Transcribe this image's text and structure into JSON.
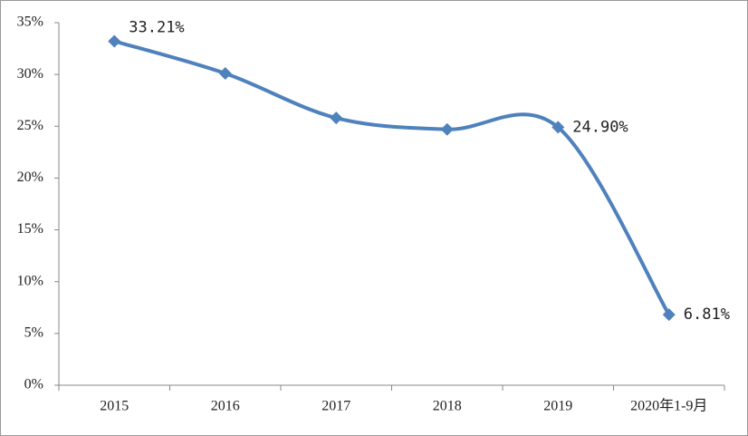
{
  "chart_data": {
    "type": "line",
    "categories": [
      "2015",
      "2016",
      "2017",
      "2018",
      "2019",
      "2020年1-9月"
    ],
    "series": [
      {
        "color": "#4f81bd",
        "values": [
          33.21,
          30.1,
          25.8,
          24.7,
          24.9,
          6.81
        ],
        "value_labels": [
          "33.21%",
          null,
          null,
          null,
          "24.90%",
          "6.81%"
        ]
      }
    ],
    "ylim": [
      0,
      35
    ],
    "yticks": [
      {
        "value": 0,
        "label": "0%"
      },
      {
        "value": 5,
        "label": "5%"
      },
      {
        "value": 10,
        "label": "10%"
      },
      {
        "value": 15,
        "label": "15%"
      },
      {
        "value": 20,
        "label": "20%"
      },
      {
        "value": 25,
        "label": "25%"
      },
      {
        "value": 30,
        "label": "30%"
      },
      {
        "value": 35,
        "label": "35%"
      }
    ],
    "grid": false
  }
}
